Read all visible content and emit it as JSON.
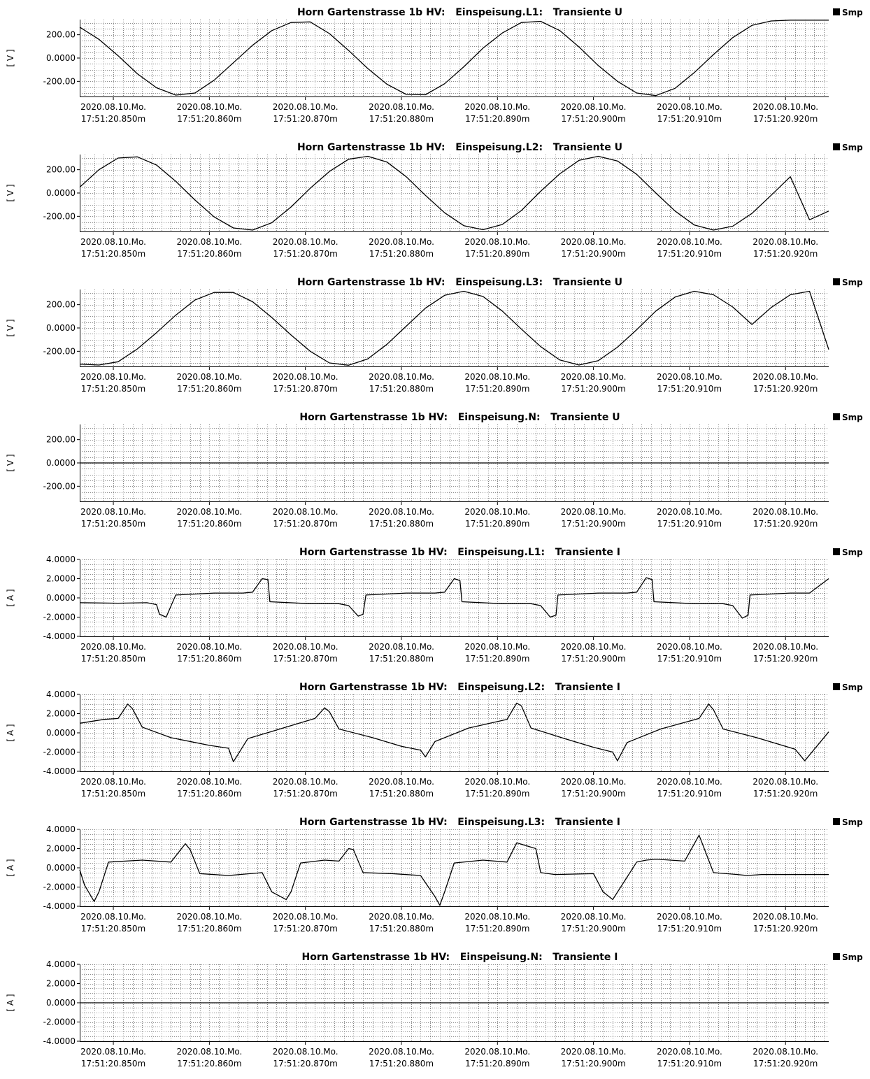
{
  "chart_data": [
    {
      "type": "line",
      "title": "Horn Gartenstrasse 1b HV:   Einspeisung.L1:   Transiente U",
      "ylabel": "[ V ]",
      "ylim": [
        -330,
        330
      ],
      "yticks": [
        200,
        0,
        -200
      ],
      "ytick_labels": [
        "200.00",
        "0.0000",
        "-200.00"
      ],
      "legend": "Smp",
      "x_tick_dates": [
        "2020.08.10.Mo.",
        "2020.08.10.Mo.",
        "2020.08.10.Mo.",
        "2020.08.10.Mo.",
        "2020.08.10.Mo.",
        "2020.08.10.Mo.",
        "2020.08.10.Mo.",
        "2020.08.10.Mo."
      ],
      "x_tick_times": [
        "17:51:20.850m",
        "17:51:20.860m",
        "17:51:20.870m",
        "17:51:20.880m",
        "17:51:20.890m",
        "17:51:20.900m",
        "17:51:20.910m",
        "17:51:20.920m"
      ],
      "series": [
        {
          "x": [
            20.8465,
            20.8485,
            20.8505,
            20.8525,
            20.8545,
            20.8565,
            20.8585,
            20.8605,
            20.8625,
            20.8645,
            20.8665,
            20.8685,
            20.8705,
            20.8725,
            20.8745,
            20.8765,
            20.8785,
            20.8805,
            20.8825,
            20.8845,
            20.8865,
            20.8885,
            20.8905,
            20.8925,
            20.8945,
            20.8965,
            20.8985,
            20.9005,
            20.9025,
            20.9045,
            20.9065,
            20.9085,
            20.9105,
            20.9125,
            20.9145,
            20.9165,
            20.9185,
            20.9205,
            20.9245
          ],
          "y": [
            265,
            160,
            20,
            -135,
            -255,
            -318,
            -300,
            -190,
            -40,
            110,
            235,
            305,
            310,
            210,
            65,
            -90,
            -225,
            -312,
            -315,
            -220,
            -75,
            85,
            215,
            305,
            315,
            235,
            95,
            -65,
            -200,
            -300,
            -322,
            -260,
            -125,
            30,
            175,
            280,
            318,
            325,
            325
          ]
        }
      ]
    },
    {
      "type": "line",
      "title": "Horn Gartenstrasse 1b HV:   Einspeisung.L2:   Transiente U",
      "ylabel": "[ V ]",
      "ylim": [
        -330,
        330
      ],
      "yticks": [
        200,
        0,
        -200
      ],
      "ytick_labels": [
        "200.00",
        "0.0000",
        "-200.00"
      ],
      "legend": "Smp",
      "x_tick_dates": [
        "2020.08.10.Mo.",
        "2020.08.10.Mo.",
        "2020.08.10.Mo.",
        "2020.08.10.Mo.",
        "2020.08.10.Mo.",
        "2020.08.10.Mo.",
        "2020.08.10.Mo.",
        "2020.08.10.Mo."
      ],
      "x_tick_times": [
        "17:51:20.850m",
        "17:51:20.860m",
        "17:51:20.870m",
        "17:51:20.880m",
        "17:51:20.890m",
        "17:51:20.900m",
        "17:51:20.910m",
        "17:51:20.920m"
      ],
      "series": [
        {
          "x": [
            20.8465,
            20.8485,
            20.8505,
            20.8525,
            20.8545,
            20.8565,
            20.8585,
            20.8605,
            20.8625,
            20.8645,
            20.8665,
            20.8685,
            20.8705,
            20.8725,
            20.8745,
            20.8765,
            20.8785,
            20.8805,
            20.8825,
            20.8845,
            20.8865,
            20.8885,
            20.8905,
            20.8925,
            20.8945,
            20.8965,
            20.8985,
            20.9005,
            20.9025,
            20.9045,
            20.9065,
            20.9085,
            20.9105,
            20.9125,
            20.9145,
            20.9165,
            20.9185,
            20.9205,
            20.9225,
            20.9245
          ],
          "y": [
            50,
            200,
            300,
            310,
            240,
            100,
            -60,
            -205,
            -300,
            -318,
            -255,
            -120,
            40,
            185,
            290,
            315,
            265,
            140,
            -20,
            -170,
            -280,
            -315,
            -270,
            -150,
            15,
            165,
            280,
            315,
            275,
            160,
            0,
            -155,
            -275,
            -318,
            -285,
            -175,
            -20,
            140,
            -230,
            -155
          ]
        }
      ]
    },
    {
      "type": "line",
      "title": "Horn Gartenstrasse 1b HV:   Einspeisung.L3:   Transiente U",
      "ylabel": "[ V ]",
      "ylim": [
        -330,
        330
      ],
      "yticks": [
        200,
        0,
        -200
      ],
      "ytick_labels": [
        "200.00",
        "0.0000",
        "-200.00"
      ],
      "legend": "Smp",
      "x_tick_dates": [
        "2020.08.10.Mo.",
        "2020.08.10.Mo.",
        "2020.08.10.Mo.",
        "2020.08.10.Mo.",
        "2020.08.10.Mo.",
        "2020.08.10.Mo.",
        "2020.08.10.Mo.",
        "2020.08.10.Mo."
      ],
      "x_tick_times": [
        "17:51:20.850m",
        "17:51:20.860m",
        "17:51:20.870m",
        "17:51:20.880m",
        "17:51:20.890m",
        "17:51:20.900m",
        "17:51:20.910m",
        "17:51:20.920m"
      ],
      "series": [
        {
          "x": [
            20.8465,
            20.8485,
            20.8505,
            20.8525,
            20.8545,
            20.8565,
            20.8585,
            20.8605,
            20.8625,
            20.8645,
            20.8665,
            20.8685,
            20.8705,
            20.8725,
            20.8745,
            20.8765,
            20.8785,
            20.8805,
            20.8825,
            20.8845,
            20.8865,
            20.8885,
            20.8905,
            20.8925,
            20.8945,
            20.8965,
            20.8985,
            20.9005,
            20.9025,
            20.9045,
            20.9065,
            20.9085,
            20.9105,
            20.9125,
            20.9145,
            20.9165,
            20.9185,
            20.9205,
            20.9225,
            20.9245
          ],
          "y": [
            -310,
            -318,
            -290,
            -180,
            -40,
            110,
            240,
            305,
            305,
            225,
            90,
            -60,
            -200,
            -300,
            -320,
            -265,
            -140,
            15,
            170,
            280,
            315,
            270,
            145,
            -10,
            -160,
            -275,
            -318,
            -280,
            -165,
            -15,
            145,
            265,
            315,
            285,
            180,
            30,
            175,
            285,
            315,
            -185
          ]
        }
      ]
    },
    {
      "type": "line",
      "title": "Horn Gartenstrasse 1b HV:   Einspeisung.N:   Transiente U",
      "ylabel": "[ V ]",
      "ylim": [
        -330,
        330
      ],
      "yticks": [
        200,
        0,
        -200
      ],
      "ytick_labels": [
        "200.00",
        "0.0000",
        "-200.00"
      ],
      "legend": "Smp",
      "x_tick_dates": [
        "2020.08.10.Mo.",
        "2020.08.10.Mo.",
        "2020.08.10.Mo.",
        "2020.08.10.Mo.",
        "2020.08.10.Mo.",
        "2020.08.10.Mo.",
        "2020.08.10.Mo.",
        "2020.08.10.Mo."
      ],
      "x_tick_times": [
        "17:51:20.850m",
        "17:51:20.860m",
        "17:51:20.870m",
        "17:51:20.880m",
        "17:51:20.890m",
        "17:51:20.900m",
        "17:51:20.910m",
        "17:51:20.920m"
      ],
      "series": [
        {
          "x": [
            20.8465,
            20.8545,
            20.8625,
            20.8705,
            20.8785,
            20.8865,
            20.8945,
            20.9025,
            20.9105,
            20.9185,
            20.9245
          ],
          "y": [
            0,
            0,
            0,
            0,
            0,
            0,
            0,
            0,
            0,
            0,
            0
          ]
        }
      ]
    },
    {
      "type": "line",
      "title": "Horn Gartenstrasse 1b HV:   Einspeisung.L1:   Transiente I",
      "ylabel": "[ A ]",
      "ylim": [
        -4,
        4
      ],
      "yticks": [
        4,
        2,
        0,
        -2,
        -4
      ],
      "ytick_labels": [
        "4.0000",
        "2.0000",
        "0.0000",
        "-2.0000",
        "-4.0000"
      ],
      "legend": "Smp",
      "x_tick_dates": [
        "2020.08.10.Mo.",
        "2020.08.10.Mo.",
        "2020.08.10.Mo.",
        "2020.08.10.Mo.",
        "2020.08.10.Mo.",
        "2020.08.10.Mo.",
        "2020.08.10.Mo.",
        "2020.08.10.Mo."
      ],
      "x_tick_times": [
        "17:51:20.850m",
        "17:51:20.860m",
        "17:51:20.870m",
        "17:51:20.880m",
        "17:51:20.890m",
        "17:51:20.900m",
        "17:51:20.910m",
        "17:51:20.920m"
      ],
      "series": [
        {
          "x": [
            20.8465,
            20.8505,
            20.8535,
            20.8545,
            20.8548,
            20.8555,
            20.8565,
            20.8605,
            20.8635,
            20.8645,
            20.8655,
            20.8661,
            20.8663,
            20.8705,
            20.8735,
            20.8745,
            20.8755,
            20.876,
            20.8763,
            20.8805,
            20.8835,
            20.8845,
            20.8855,
            20.8861,
            20.8863,
            20.8905,
            20.8935,
            20.8945,
            20.8955,
            20.8961,
            20.8963,
            20.9005,
            20.9035,
            20.9045,
            20.9055,
            20.9061,
            20.9063,
            20.9105,
            20.9135,
            20.9145,
            20.9155,
            20.9161,
            20.9163,
            20.9205,
            20.9225,
            20.9245
          ],
          "y": [
            -0.5,
            -0.55,
            -0.5,
            -0.7,
            -1.7,
            -2.0,
            0.3,
            0.5,
            0.5,
            0.6,
            2.0,
            1.9,
            -0.4,
            -0.6,
            -0.6,
            -0.8,
            -1.9,
            -1.7,
            0.3,
            0.5,
            0.5,
            0.6,
            2.0,
            1.8,
            -0.4,
            -0.6,
            -0.6,
            -0.8,
            -2.0,
            -1.8,
            0.3,
            0.5,
            0.5,
            0.6,
            2.1,
            1.9,
            -0.4,
            -0.6,
            -0.6,
            -0.8,
            -2.1,
            -1.8,
            0.3,
            0.5,
            0.5,
            2.0
          ]
        }
      ]
    },
    {
      "type": "line",
      "title": "Horn Gartenstrasse 1b HV:   Einspeisung.L2:   Transiente I",
      "ylabel": "[ A ]",
      "ylim": [
        -4,
        4
      ],
      "yticks": [
        4,
        2,
        0,
        -2,
        -4
      ],
      "ytick_labels": [
        "4.0000",
        "2.0000",
        "0.0000",
        "-2.0000",
        "-4.0000"
      ],
      "legend": "Smp",
      "x_tick_dates": [
        "2020.08.10.Mo.",
        "2020.08.10.Mo.",
        "2020.08.10.Mo.",
        "2020.08.10.Mo.",
        "2020.08.10.Mo.",
        "2020.08.10.Mo.",
        "2020.08.10.Mo.",
        "2020.08.10.Mo."
      ],
      "x_tick_times": [
        "17:51:20.850m",
        "17:51:20.860m",
        "17:51:20.870m",
        "17:51:20.880m",
        "17:51:20.890m",
        "17:51:20.900m",
        "17:51:20.910m",
        "17:51:20.920m"
      ],
      "series": [
        {
          "x": [
            20.8465,
            20.849,
            20.8505,
            20.8515,
            20.852,
            20.853,
            20.856,
            20.86,
            20.862,
            20.8625,
            20.863,
            20.864,
            20.868,
            20.871,
            20.872,
            20.8725,
            20.8735,
            20.877,
            20.88,
            20.882,
            20.8825,
            20.8835,
            20.887,
            20.891,
            20.892,
            20.8925,
            20.8935,
            20.897,
            20.9,
            20.902,
            20.9025,
            20.9035,
            20.907,
            20.911,
            20.912,
            20.9125,
            20.9135,
            20.917,
            20.92,
            20.921,
            20.922,
            20.9245
          ],
          "y": [
            1.0,
            1.4,
            1.5,
            3.0,
            2.5,
            0.6,
            -0.5,
            -1.3,
            -1.6,
            -3.0,
            -2.2,
            -0.6,
            0.6,
            1.5,
            2.6,
            2.2,
            0.4,
            -0.5,
            -1.4,
            -1.8,
            -2.5,
            -0.9,
            0.5,
            1.4,
            3.1,
            2.8,
            0.5,
            -0.6,
            -1.5,
            -2.0,
            -2.9,
            -1.0,
            0.4,
            1.5,
            3.0,
            2.4,
            0.4,
            -0.5,
            -1.4,
            -1.7,
            -2.9,
            0.1
          ]
        }
      ]
    },
    {
      "type": "line",
      "title": "Horn Gartenstrasse 1b HV:   Einspeisung.L3:   Transiente I",
      "ylabel": "[ A ]",
      "ylim": [
        -4,
        4
      ],
      "yticks": [
        4,
        2,
        0,
        -2,
        -4
      ],
      "ytick_labels": [
        "4.0000",
        "2.0000",
        "0.0000",
        "-2.0000",
        "-4.0000"
      ],
      "legend": "Smp",
      "x_tick_dates": [
        "2020.08.10.Mo.",
        "2020.08.10.Mo.",
        "2020.08.10.Mo.",
        "2020.08.10.Mo.",
        "2020.08.10.Mo.",
        "2020.08.10.Mo.",
        "2020.08.10.Mo.",
        "2020.08.10.Mo."
      ],
      "x_tick_times": [
        "17:51:20.850m",
        "17:51:20.860m",
        "17:51:20.870m",
        "17:51:20.880m",
        "17:51:20.890m",
        "17:51:20.900m",
        "17:51:20.910m",
        "17:51:20.920m"
      ],
      "series": [
        {
          "x": [
            20.8465,
            20.847,
            20.848,
            20.8485,
            20.8495,
            20.853,
            20.856,
            20.8575,
            20.858,
            20.859,
            20.862,
            20.8655,
            20.8665,
            20.868,
            20.8685,
            20.8695,
            20.872,
            20.8735,
            20.8745,
            20.875,
            20.876,
            20.879,
            20.882,
            20.8835,
            20.884,
            20.8845,
            20.8855,
            20.8885,
            20.891,
            20.892,
            20.894,
            20.8945,
            20.896,
            20.9,
            20.901,
            20.902,
            20.9045,
            20.9055,
            20.9065,
            20.9095,
            20.911,
            20.9125,
            20.915,
            20.916,
            20.9175,
            20.92,
            20.9245
          ],
          "y": [
            -0.2,
            -1.8,
            -3.5,
            -2.5,
            0.6,
            0.8,
            0.6,
            2.5,
            1.9,
            -0.6,
            -0.8,
            -0.5,
            -2.5,
            -3.3,
            -2.5,
            0.5,
            0.8,
            0.7,
            2.0,
            1.9,
            -0.5,
            -0.6,
            -0.8,
            -3.0,
            -3.9,
            -2.5,
            0.5,
            0.8,
            0.6,
            2.6,
            2.0,
            -0.5,
            -0.7,
            -0.6,
            -2.5,
            -3.3,
            0.6,
            0.8,
            0.9,
            0.7,
            3.4,
            -0.5,
            -0.7,
            -0.8,
            -0.7,
            -0.7,
            -0.7
          ]
        }
      ]
    },
    {
      "type": "line",
      "title": "Horn Gartenstrasse 1b HV:   Einspeisung.N:   Transiente I",
      "ylabel": "[ A ]",
      "ylim": [
        -4,
        4
      ],
      "yticks": [
        4,
        2,
        0,
        -2,
        -4
      ],
      "ytick_labels": [
        "4.0000",
        "2.0000",
        "0.0000",
        "-2.0000",
        "-4.0000"
      ],
      "legend": "Smp",
      "x_tick_dates": [
        "2020.08.10.Mo.",
        "2020.08.10.Mo.",
        "2020.08.10.Mo.",
        "2020.08.10.Mo.",
        "2020.08.10.Mo.",
        "2020.08.10.Mo.",
        "2020.08.10.Mo.",
        "2020.08.10.Mo."
      ],
      "x_tick_times": [
        "17:51:20.850m",
        "17:51:20.860m",
        "17:51:20.870m",
        "17:51:20.880m",
        "17:51:20.890m",
        "17:51:20.900m",
        "17:51:20.910m",
        "17:51:20.920m"
      ],
      "series": [
        {
          "x": [
            20.8465,
            20.8545,
            20.8625,
            20.8705,
            20.8785,
            20.8865,
            20.8945,
            20.9025,
            20.9105,
            20.9185,
            20.9245
          ],
          "y": [
            0,
            0,
            0,
            0,
            0,
            0,
            0,
            0,
            0,
            0,
            0
          ]
        }
      ]
    }
  ]
}
